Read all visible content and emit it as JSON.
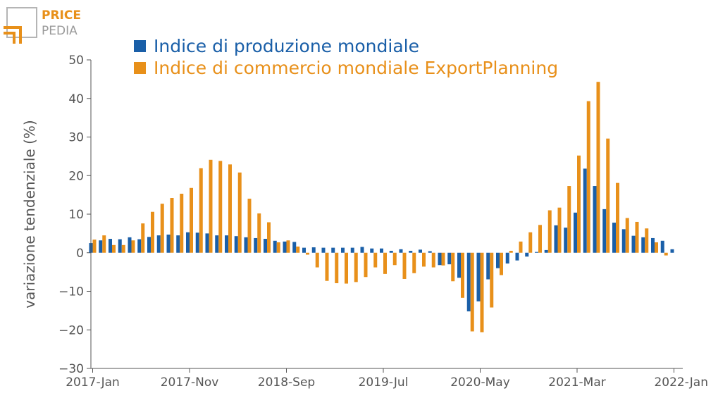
{
  "logo": {
    "line1": "PRICE",
    "line2": "PEDIA",
    "color_orange": "#e8901a",
    "color_gray": "#9a9a9a"
  },
  "chart_data": {
    "type": "bar",
    "ylabel": "variazione tendenziale (%)",
    "ylim": [
      -30,
      50
    ],
    "yticks": [
      -30,
      -20,
      -10,
      0,
      10,
      20,
      30,
      40,
      50
    ],
    "ytick_labels": [
      "−30",
      "−20",
      "−10",
      "0",
      "10",
      "20",
      "30",
      "40",
      "50"
    ],
    "categories": [
      "2017-Jan",
      "2017-Feb",
      "2017-Mar",
      "2017-Apr",
      "2017-May",
      "2017-Jun",
      "2017-Jul",
      "2017-Aug",
      "2017-Sep",
      "2017-Oct",
      "2017-Nov",
      "2017-Dec",
      "2018-Jan",
      "2018-Feb",
      "2018-Mar",
      "2018-Apr",
      "2018-May",
      "2018-Jun",
      "2018-Jul",
      "2018-Aug",
      "2018-Sep",
      "2018-Oct",
      "2018-Nov",
      "2018-Dec",
      "2019-Jan",
      "2019-Feb",
      "2019-Mar",
      "2019-Apr",
      "2019-May",
      "2019-Jun",
      "2019-Jul",
      "2019-Aug",
      "2019-Sep",
      "2019-Oct",
      "2019-Nov",
      "2019-Dec",
      "2020-Jan",
      "2020-Feb",
      "2020-Mar",
      "2020-Apr",
      "2020-May",
      "2020-Jun",
      "2020-Jul",
      "2020-Aug",
      "2020-Sep",
      "2020-Oct",
      "2020-Nov",
      "2020-Dec",
      "2021-Jan",
      "2021-Feb",
      "2021-Mar",
      "2021-Apr",
      "2021-May",
      "2021-Jun",
      "2021-Jul",
      "2021-Aug",
      "2021-Sep",
      "2021-Oct",
      "2021-Nov",
      "2021-Dec",
      "2022-Jan"
    ],
    "xtick_labels": [
      "2017-Jan",
      "2017-Nov",
      "2018-Sep",
      "2019-Jul",
      "2020-May",
      "2021-Mar",
      "2022-Jan"
    ],
    "legend_position": "top-left",
    "series": [
      {
        "name": "Indice di produzione mondiale",
        "color": "#1a5fa8",
        "values": [
          2.5,
          3.2,
          3.6,
          3.5,
          4.0,
          3.5,
          4.1,
          4.5,
          4.7,
          4.5,
          5.3,
          5.2,
          5.0,
          4.5,
          4.5,
          4.3,
          4.0,
          3.8,
          3.6,
          3.1,
          2.9,
          2.8,
          1.3,
          1.4,
          1.3,
          1.3,
          1.3,
          1.3,
          1.5,
          1.1,
          1.1,
          0.5,
          0.9,
          0.5,
          0.8,
          0.4,
          -3.2,
          -3.0,
          -6.5,
          -15.2,
          -12.6,
          -6.9,
          -4.0,
          -2.8,
          -2.0,
          -1.0,
          0.2,
          0.7,
          7.1,
          6.5,
          10.4,
          21.8,
          17.3,
          11.3,
          7.8,
          6.1,
          4.4,
          4.0,
          3.8,
          3.1,
          0.9
        ]
      },
      {
        "name": "Indice di commercio mondiale ExportPlanning",
        "color": "#e8901a",
        "values": [
          3.4,
          4.5,
          2.0,
          2.0,
          3.2,
          7.6,
          10.6,
          12.7,
          14.2,
          15.3,
          16.8,
          21.9,
          24.1,
          23.8,
          22.9,
          20.8,
          14.0,
          10.2,
          7.9,
          2.7,
          3.2,
          1.6,
          -0.5,
          -3.8,
          -7.3,
          -7.9,
          -8.0,
          -7.6,
          -6.3,
          -3.8,
          -5.5,
          -3.2,
          -6.8,
          -5.3,
          -3.6,
          -3.8,
          -3.3,
          -7.4,
          -11.7,
          -20.4,
          -20.6,
          -14.2,
          -5.8,
          0.5,
          2.9,
          5.3,
          7.2,
          11.0,
          11.7,
          17.3,
          25.2,
          39.3,
          44.3,
          29.6,
          18.1,
          9.0,
          8.0,
          6.3,
          2.7,
          -0.7,
          null
        ]
      }
    ]
  }
}
